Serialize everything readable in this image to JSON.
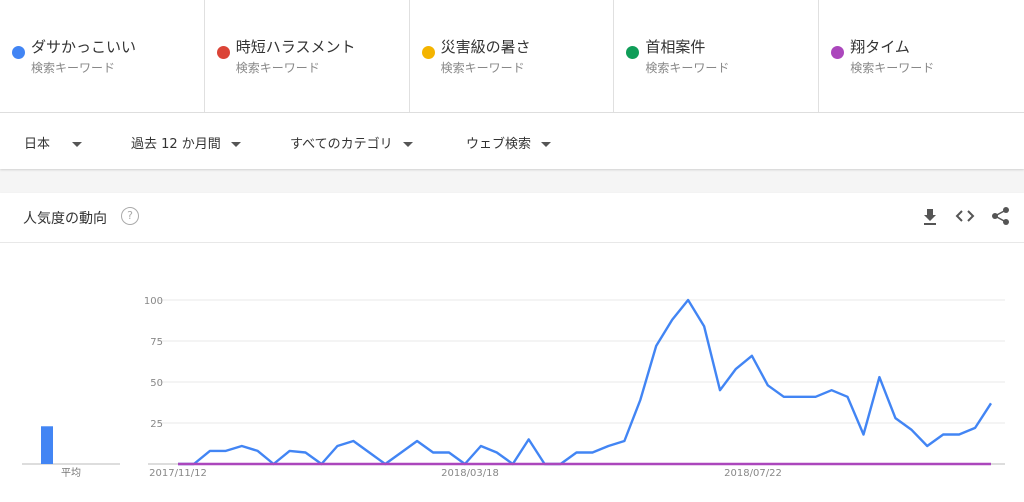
{
  "terms": [
    {
      "name": "ダサかっこいい",
      "sub": "検索キーワード",
      "color": "#4285f4"
    },
    {
      "name": "時短ハラスメント",
      "sub": "検索キーワード",
      "color": "#db4437"
    },
    {
      "name": "災害級の暑さ",
      "sub": "検索キーワード",
      "color": "#f4b400"
    },
    {
      "name": "首相案件",
      "sub": "検索キーワード",
      "color": "#0f9d58"
    },
    {
      "name": "翔タイム",
      "sub": "検索キーワード",
      "color": "#ab47bc"
    }
  ],
  "filters": {
    "region": "日本",
    "period": "過去 12 か月間",
    "category": "すべてのカテゴリ",
    "search_type": "ウェブ検索"
  },
  "card": {
    "title": "人気度の動向",
    "help_icon": "help-circle-icon",
    "tools": [
      "download-icon",
      "embed-code-icon",
      "share-icon"
    ]
  },
  "chart_data": {
    "type": "line",
    "ylim": [
      0,
      100
    ],
    "y_ticks": [
      "100",
      "75",
      "50",
      "25"
    ],
    "x_tick_labels": [
      "2017/11/12",
      "2018/03/18",
      "2018/07/22"
    ],
    "average_label": "平均",
    "average_value": 23,
    "series": [
      {
        "name": "ダサかっこいい",
        "color": "#4285f4",
        "values": [
          0,
          0,
          8,
          8,
          11,
          8,
          0,
          8,
          7,
          0,
          11,
          14,
          7,
          0,
          7,
          14,
          7,
          7,
          0,
          11,
          7,
          0,
          15,
          0,
          0,
          7,
          7,
          11,
          14,
          39,
          72,
          88,
          100,
          84,
          45,
          58,
          66,
          48,
          41,
          41,
          41,
          45,
          41,
          18,
          53,
          28,
          21,
          11,
          18,
          18,
          22,
          37
        ]
      },
      {
        "name": "翔タイム",
        "color": "#ab47bc",
        "values": [
          0,
          0,
          0,
          0,
          0,
          0,
          0,
          0,
          0,
          0,
          0,
          0,
          0,
          0,
          0,
          0,
          0,
          0,
          0,
          0,
          0,
          0,
          0,
          0,
          0,
          0,
          0,
          0,
          0,
          0,
          0,
          0,
          0,
          0,
          0,
          0,
          0,
          0,
          0,
          0,
          0,
          0,
          0,
          0,
          0,
          0,
          0,
          0,
          0,
          0,
          0,
          0
        ]
      }
    ]
  }
}
